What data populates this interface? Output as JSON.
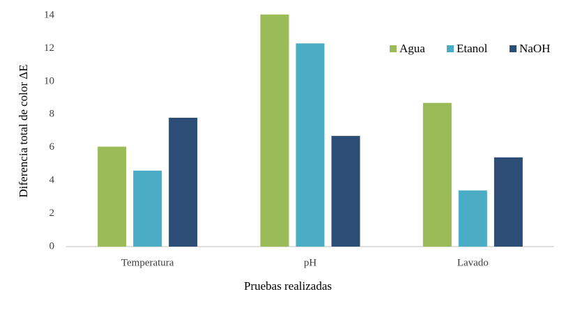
{
  "chart_data": {
    "type": "bar",
    "y_axis_label": "Diferencia total de color ΔE",
    "x_axis_label": "Pruebas realizadas",
    "categories": [
      "Temperatura",
      "pH",
      "Lavado"
    ],
    "series": [
      {
        "name": "Agua",
        "color": "#9bbb59",
        "values": [
          6.05,
          14.05,
          8.7
        ]
      },
      {
        "name": "Etanol",
        "color": "#4bacc6",
        "values": [
          4.6,
          12.3,
          3.4
        ]
      },
      {
        "name": "NaOH",
        "color": "#2c4d75",
        "values": [
          7.8,
          6.7,
          5.4
        ]
      }
    ],
    "ylim": [
      0,
      14
    ],
    "yticks": [
      0,
      2,
      4,
      6,
      8,
      10,
      12,
      14
    ],
    "grid": false,
    "legend": "top-right"
  }
}
